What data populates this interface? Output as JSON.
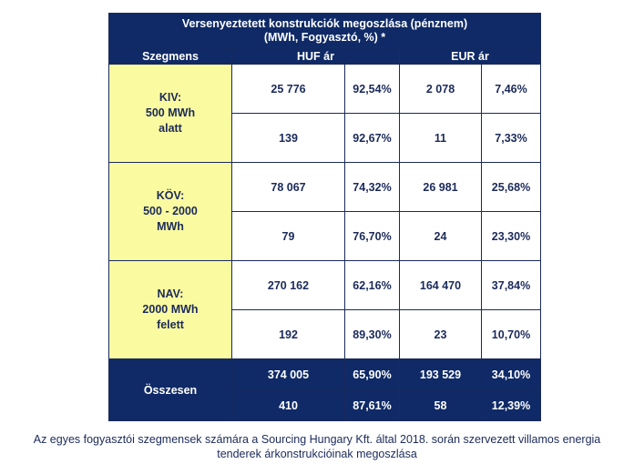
{
  "title_line1": "Versenyeztetett konstrukciók megoszlása (pénznem)",
  "title_line2": "(MWh, Fogyasztó, %) *",
  "headers": {
    "segment": "Szegmens",
    "huf": "HUF ár",
    "eur": "EUR ár"
  },
  "segments": [
    {
      "label_lines": [
        "KIV:",
        "500 MWh",
        "alatt"
      ],
      "rows": [
        {
          "huf_value": "25 776",
          "huf_pct": "92,54%",
          "eur_value": "2 078",
          "eur_pct": "7,46%"
        },
        {
          "huf_value": "139",
          "huf_pct": "92,67%",
          "eur_value": "11",
          "eur_pct": "7,33%"
        }
      ]
    },
    {
      "label_lines": [
        "KÖV:",
        "500 - 2000",
        "MWh"
      ],
      "rows": [
        {
          "huf_value": "78 067",
          "huf_pct": "74,32%",
          "eur_value": "26 981",
          "eur_pct": "25,68%"
        },
        {
          "huf_value": "79",
          "huf_pct": "76,70%",
          "eur_value": "24",
          "eur_pct": "23,30%"
        }
      ]
    },
    {
      "label_lines": [
        "NAV:",
        "2000 MWh",
        "felett"
      ],
      "rows": [
        {
          "huf_value": "270 162",
          "huf_pct": "62,16%",
          "eur_value": "164 470",
          "eur_pct": "37,84%"
        },
        {
          "huf_value": "192",
          "huf_pct": "89,30%",
          "eur_value": "23",
          "eur_pct": "10,70%"
        }
      ]
    }
  ],
  "total": {
    "label": "Összesen",
    "rows": [
      {
        "huf_value": "374 005",
        "huf_pct": "65,90%",
        "eur_value": "193 529",
        "eur_pct": "34,10%"
      },
      {
        "huf_value": "410",
        "huf_pct": "87,61%",
        "eur_value": "58",
        "eur_pct": "12,39%"
      }
    ]
  },
  "caption_line1": "Az egyes fogyasztói szegmensek számára a Sourcing Hungary Kft. által 2018. során szervezett villamos energia",
  "caption_line2": "tenderek árkonstrukcióinak megoszlása",
  "colors": {
    "header_bg": "#0f2a66",
    "segment_bg": "#fafaa0",
    "text": "#1b2a5a"
  }
}
